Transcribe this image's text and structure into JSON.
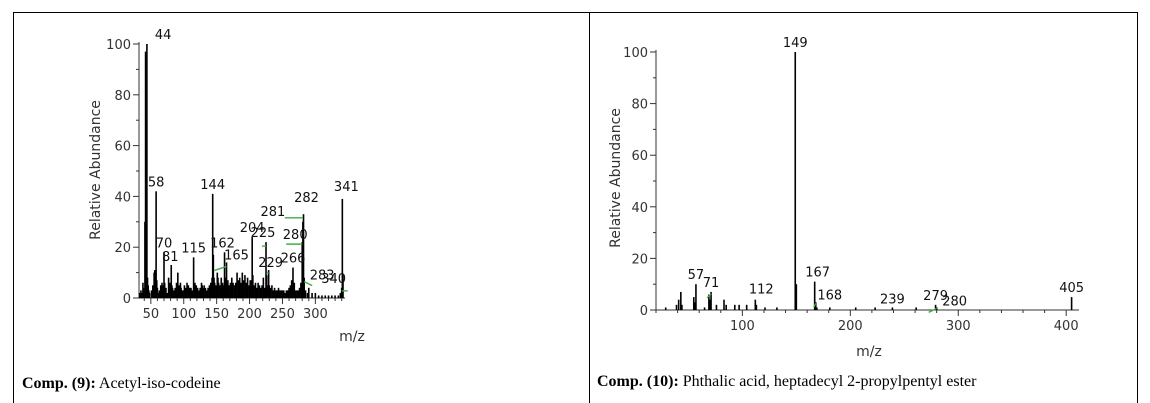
{
  "panels": [
    {
      "caption_label": "Comp. (9):",
      "caption_text": " Acetyl-iso-codeine",
      "chart_data": {
        "type": "bar",
        "xlabel": "m/z",
        "ylabel": "Relative Abundance",
        "xlim": [
          32,
          342
        ],
        "ylim": [
          0,
          100
        ],
        "xticks": [
          50,
          100,
          150,
          200,
          250,
          300
        ],
        "yticks": [
          0,
          20,
          40,
          60,
          80,
          100
        ],
        "peaks": [
          [
            33,
            2
          ],
          [
            35,
            3
          ],
          [
            36,
            2
          ],
          [
            38,
            6
          ],
          [
            39,
            4
          ],
          [
            41,
            30
          ],
          [
            42,
            97
          ],
          [
            43,
            70
          ],
          [
            44,
            100
          ],
          [
            45,
            8
          ],
          [
            46,
            5
          ],
          [
            47,
            3
          ],
          [
            48,
            2
          ],
          [
            51,
            3
          ],
          [
            53,
            5
          ],
          [
            55,
            10
          ],
          [
            56,
            11
          ],
          [
            57,
            8
          ],
          [
            58,
            42
          ],
          [
            59,
            7
          ],
          [
            60,
            4
          ],
          [
            62,
            2
          ],
          [
            63,
            3
          ],
          [
            65,
            5
          ],
          [
            67,
            6
          ],
          [
            68,
            3
          ],
          [
            69,
            5
          ],
          [
            70,
            18
          ],
          [
            71,
            6
          ],
          [
            72,
            3
          ],
          [
            73,
            4
          ],
          [
            75,
            2
          ],
          [
            77,
            8
          ],
          [
            78,
            3
          ],
          [
            79,
            6
          ],
          [
            80,
            3
          ],
          [
            81,
            13
          ],
          [
            82,
            5
          ],
          [
            83,
            4
          ],
          [
            85,
            3
          ],
          [
            87,
            4
          ],
          [
            89,
            6
          ],
          [
            91,
            10
          ],
          [
            93,
            5
          ],
          [
            94,
            3
          ],
          [
            95,
            6
          ],
          [
            96,
            4
          ],
          [
            97,
            3
          ],
          [
            99,
            3
          ],
          [
            101,
            5
          ],
          [
            103,
            4
          ],
          [
            105,
            6
          ],
          [
            107,
            5
          ],
          [
            108,
            3
          ],
          [
            109,
            4
          ],
          [
            110,
            3
          ],
          [
            111,
            4
          ],
          [
            113,
            3
          ],
          [
            115,
            16
          ],
          [
            116,
            4
          ],
          [
            117,
            6
          ],
          [
            119,
            5
          ],
          [
            121,
            4
          ],
          [
            123,
            3
          ],
          [
            125,
            4
          ],
          [
            127,
            6
          ],
          [
            128,
            5
          ],
          [
            129,
            4
          ],
          [
            130,
            3
          ],
          [
            131,
            5
          ],
          [
            133,
            4
          ],
          [
            135,
            3
          ],
          [
            137,
            4
          ],
          [
            139,
            5
          ],
          [
            141,
            6
          ],
          [
            143,
            8
          ],
          [
            144,
            41
          ],
          [
            145,
            17
          ],
          [
            146,
            8
          ],
          [
            147,
            6
          ],
          [
            149,
            5
          ],
          [
            151,
            10
          ],
          [
            152,
            8
          ],
          [
            153,
            6
          ],
          [
            155,
            5
          ],
          [
            157,
            8
          ],
          [
            159,
            6
          ],
          [
            160,
            5
          ],
          [
            161,
            4
          ],
          [
            162,
            18
          ],
          [
            163,
            8
          ],
          [
            165,
            14
          ],
          [
            166,
            6
          ],
          [
            167,
            7
          ],
          [
            169,
            5
          ],
          [
            171,
            6
          ],
          [
            173,
            8
          ],
          [
            174,
            5
          ],
          [
            175,
            6
          ],
          [
            177,
            5
          ],
          [
            179,
            6
          ],
          [
            181,
            10
          ],
          [
            183,
            7
          ],
          [
            185,
            8
          ],
          [
            187,
            6
          ],
          [
            189,
            10
          ],
          [
            191,
            7
          ],
          [
            193,
            9
          ],
          [
            195,
            6
          ],
          [
            197,
            8
          ],
          [
            199,
            5
          ],
          [
            201,
            7
          ],
          [
            203,
            7
          ],
          [
            204,
            24
          ],
          [
            205,
            9
          ],
          [
            207,
            5
          ],
          [
            209,
            6
          ],
          [
            211,
            4
          ],
          [
            213,
            6
          ],
          [
            215,
            5
          ],
          [
            217,
            4
          ],
          [
            219,
            5
          ],
          [
            221,
            8
          ],
          [
            223,
            4
          ],
          [
            225,
            22
          ],
          [
            226,
            9
          ],
          [
            227,
            5
          ],
          [
            229,
            11
          ],
          [
            230,
            5
          ],
          [
            232,
            4
          ],
          [
            234,
            5
          ],
          [
            236,
            3
          ],
          [
            238,
            4
          ],
          [
            240,
            3
          ],
          [
            242,
            3
          ],
          [
            244,
            4
          ],
          [
            246,
            3
          ],
          [
            248,
            3
          ],
          [
            250,
            3
          ],
          [
            252,
            3
          ],
          [
            254,
            2
          ],
          [
            256,
            3
          ],
          [
            258,
            3
          ],
          [
            260,
            4
          ],
          [
            262,
            5
          ],
          [
            264,
            7
          ],
          [
            266,
            12
          ],
          [
            268,
            6
          ],
          [
            270,
            3
          ],
          [
            272,
            3
          ],
          [
            274,
            3
          ],
          [
            276,
            4
          ],
          [
            278,
            6
          ],
          [
            280,
            22
          ],
          [
            281,
            30
          ],
          [
            282,
            33
          ],
          [
            283,
            8
          ],
          [
            285,
            3
          ],
          [
            288,
            2
          ],
          [
            290,
            4
          ],
          [
            295,
            2
          ],
          [
            300,
            2
          ],
          [
            305,
            1
          ],
          [
            310,
            1
          ],
          [
            315,
            1
          ],
          [
            320,
            1
          ],
          [
            325,
            1
          ],
          [
            330,
            1
          ],
          [
            335,
            1
          ],
          [
            338,
            2
          ],
          [
            340,
            4
          ],
          [
            341,
            39
          ],
          [
            342,
            9
          ]
        ],
        "labels": [
          {
            "text": "44",
            "mz": 44,
            "y": 100
          },
          {
            "text": "58",
            "mz": 58,
            "y": 42
          },
          {
            "text": "70",
            "mz": 70,
            "y": 18
          },
          {
            "text": "81",
            "mz": 81,
            "y": 13
          },
          {
            "text": "115",
            "mz": 115,
            "y": 16
          },
          {
            "text": "144",
            "mz": 144,
            "y": 41
          },
          {
            "text": "162",
            "mz": 162,
            "y": 18
          },
          {
            "text": "165",
            "mz": 165,
            "y": 14
          },
          {
            "text": "204",
            "mz": 204,
            "y": 24
          },
          {
            "text": "225",
            "mz": 225,
            "y": 22
          },
          {
            "text": "229",
            "mz": 229,
            "y": 11
          },
          {
            "text": "266",
            "mz": 266,
            "y": 12
          },
          {
            "text": "280",
            "mz": 280,
            "y": 22
          },
          {
            "text": "281",
            "mz": 281,
            "y": 30
          },
          {
            "text": "282",
            "mz": 282,
            "y": 33
          },
          {
            "text": "283",
            "mz": 283,
            "y": 8
          },
          {
            "text": "340",
            "mz": 340,
            "y": 4
          },
          {
            "text": "341",
            "mz": 341,
            "y": 39
          }
        ]
      }
    },
    {
      "caption_label": "Comp. (10):",
      "caption_text": " Phthalic acid, heptadecyl 2-propylpentyl ester",
      "chart_data": {
        "type": "bar",
        "xlabel": "m/z",
        "ylabel": "Relative Abundance",
        "xlim": [
          20,
          410
        ],
        "ylim": [
          0,
          100
        ],
        "xticks": [
          100,
          200,
          300,
          400
        ],
        "yticks": [
          0,
          20,
          40,
          60,
          80,
          100
        ],
        "peaks": [
          [
            29,
            1
          ],
          [
            39,
            2
          ],
          [
            41,
            4
          ],
          [
            43,
            7
          ],
          [
            44,
            2
          ],
          [
            55,
            5
          ],
          [
            56,
            3
          ],
          [
            57,
            10
          ],
          [
            65,
            1
          ],
          [
            69,
            6
          ],
          [
            70,
            4
          ],
          [
            71,
            7
          ],
          [
            76,
            2
          ],
          [
            83,
            4
          ],
          [
            85,
            2
          ],
          [
            93,
            2
          ],
          [
            97,
            2
          ],
          [
            104,
            2
          ],
          [
            112,
            4
          ],
          [
            113,
            2
          ],
          [
            121,
            1
          ],
          [
            132,
            1
          ],
          [
            149,
            100
          ],
          [
            150,
            10
          ],
          [
            167,
            11
          ],
          [
            168,
            3
          ],
          [
            169,
            1
          ],
          [
            181,
            1
          ],
          [
            205,
            1
          ],
          [
            223,
            1
          ],
          [
            239,
            1
          ],
          [
            261,
            1
          ],
          [
            279,
            2
          ],
          [
            280,
            1
          ],
          [
            405,
            5
          ]
        ],
        "labels": [
          {
            "text": "57",
            "mz": 57,
            "y": 10
          },
          {
            "text": "71",
            "mz": 71,
            "y": 7
          },
          {
            "text": "112",
            "mz": 112,
            "y": 4
          },
          {
            "text": "149",
            "mz": 149,
            "y": 100
          },
          {
            "text": "167",
            "mz": 167,
            "y": 11
          },
          {
            "text": "168",
            "mz": 168,
            "y": 3
          },
          {
            "text": "239",
            "mz": 239,
            "y": 1
          },
          {
            "text": "279",
            "mz": 279,
            "y": 2
          },
          {
            "text": "280",
            "mz": 280,
            "y": 1
          },
          {
            "text": "405",
            "mz": 405,
            "y": 5
          }
        ]
      }
    }
  ]
}
